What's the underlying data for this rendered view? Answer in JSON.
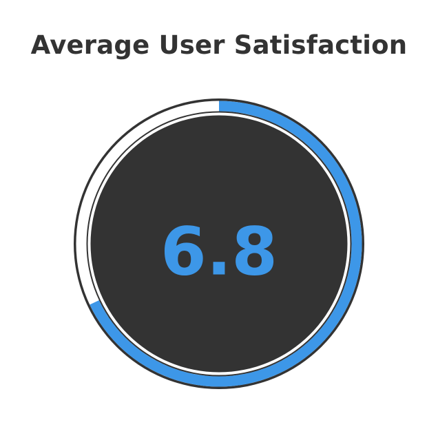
{
  "chart_data": {
    "type": "gauge",
    "title": "Average User Satisfaction",
    "value": 6.8,
    "value_label": "6.8",
    "max": 10,
    "start": "top",
    "direction": "clockwise",
    "colors": {
      "progress": "#3d97e8",
      "track": "#ffffff",
      "outline": "#333333",
      "disc": "#333333",
      "value_text": "#3d97e8",
      "title_text": "#333333"
    }
  }
}
